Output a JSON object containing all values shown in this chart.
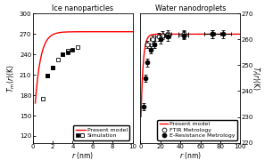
{
  "left_title": "Ice nanoparticles",
  "right_title": "Water nanodroplets",
  "left_ylabel": "$T_{m}(r)$(K)",
  "right_ylabel": "$T_f(r)$(K)",
  "xlabel": "$r$ (nm)",
  "left_xlim": [
    0,
    10
  ],
  "left_ylim": [
    110,
    300
  ],
  "left_yticks": [
    120,
    150,
    180,
    210,
    240,
    270,
    300
  ],
  "right_xlim": [
    0,
    100
  ],
  "right_ylim": [
    220,
    270
  ],
  "right_yticks": [
    220,
    230,
    240,
    250,
    260,
    270
  ],
  "left_xticks": [
    0,
    2,
    4,
    6,
    8,
    10
  ],
  "right_xticks": [
    0,
    20,
    40,
    60,
    80,
    100
  ],
  "sim_filled_x": [
    1.5,
    2.0,
    3.0,
    3.5,
    4.0
  ],
  "sim_filled_y": [
    209,
    220,
    240,
    243,
    246
  ],
  "sim_open_x": [
    1.0,
    1.5,
    2.0,
    2.5,
    3.0,
    3.5,
    4.5
  ],
  "sim_open_y": [
    175,
    209,
    220,
    232,
    240,
    245,
    250
  ],
  "ftir_x": [
    7,
    12,
    18,
    22,
    27,
    43,
    72
  ],
  "ftir_y": [
    258,
    260,
    261,
    261.5,
    262,
    262,
    262
  ],
  "ftir_xerr": [
    2,
    3,
    3,
    3,
    4,
    5,
    8
  ],
  "ftir_yerr": [
    1.5,
    1.5,
    1.5,
    1.5,
    1.5,
    1.5,
    1.5
  ],
  "eres_x": [
    3,
    5,
    7,
    10,
    14,
    20,
    27,
    43,
    72,
    83
  ],
  "eres_y": [
    234,
    245,
    251,
    256,
    258,
    260,
    261,
    261.5,
    262,
    262
  ],
  "eres_xerr": [
    0.5,
    0.5,
    1,
    1.5,
    2,
    2,
    3,
    5,
    8,
    8
  ],
  "eres_yerr": [
    1.5,
    1.5,
    1.5,
    1.5,
    1.5,
    1.5,
    1.5,
    1.5,
    1.5,
    1.5
  ],
  "line_color": "#ff0000",
  "background_color": "#ffffff",
  "model_ice_Tbulk": 273.15,
  "model_ice_c": 2.5,
  "model_water_Tbulk": 262.0,
  "model_water_T0": 222.0,
  "model_water_c": 3.0
}
